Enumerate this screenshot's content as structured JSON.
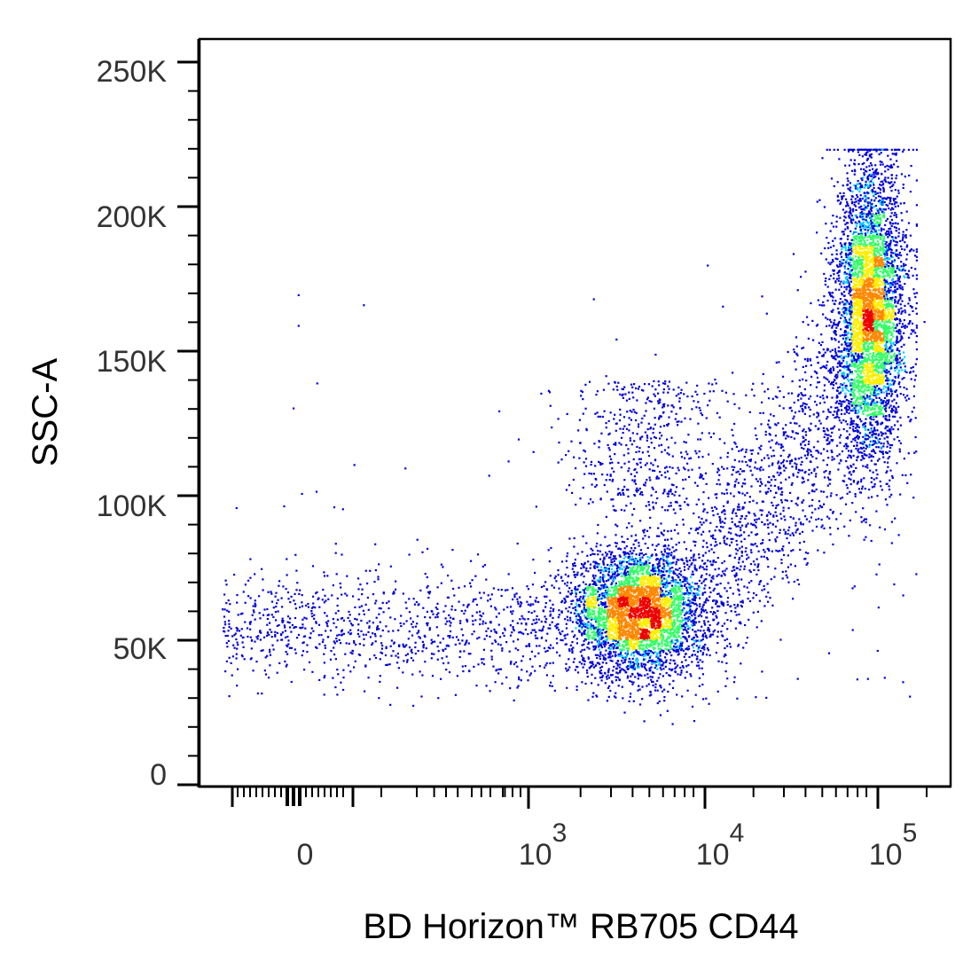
{
  "chart_data": {
    "type": "scatter",
    "style": "flow cytometry pseudocolor density dot plot",
    "xlabel": "BD Horizon™ RB705 CD44",
    "ylabel": "SSC-A",
    "x_scale": "biexponential (linear near 0, log above ~10^3)",
    "x_ticks": [
      {
        "label": "0",
        "value": 0
      },
      {
        "base": "10",
        "exp": "3",
        "value": 1000
      },
      {
        "base": "10",
        "exp": "4",
        "value": 10000
      },
      {
        "base": "10",
        "exp": "5",
        "value": 100000
      }
    ],
    "y_ticks": [
      {
        "label": "0",
        "value": 0
      },
      {
        "label": "50K",
        "value": 50000
      },
      {
        "label": "100K",
        "value": 100000
      },
      {
        "label": "150K",
        "value": 150000
      },
      {
        "label": "200K",
        "value": 200000
      },
      {
        "label": "250K",
        "value": 250000
      }
    ],
    "ylim": [
      0,
      257000
    ],
    "grid": false,
    "density_colors": [
      "#0000dd",
      "#00d0ff",
      "#33ff66",
      "#ffee00",
      "#ff8800",
      "#ee0000"
    ],
    "populations": [
      {
        "x_center": 200,
        "y_center": 55000,
        "x_spread": 700,
        "y_spread": 9000,
        "density": "low"
      },
      {
        "x_center": 4200,
        "y_center": 60000,
        "x_spread_decades": 0.25,
        "y_spread": 12000,
        "density": "high",
        "peak": [
          4000,
          55000
        ]
      },
      {
        "x_center": 85000,
        "y_center": 165000,
        "x_spread_decades": 0.15,
        "y_spread": 28000,
        "density": "high",
        "peak": [
          95000,
          175000
        ]
      },
      {
        "x_center": 30000,
        "y_center": 95000,
        "x_spread_decades": 0.3,
        "y_spread": 30000,
        "density": "medium"
      }
    ]
  }
}
